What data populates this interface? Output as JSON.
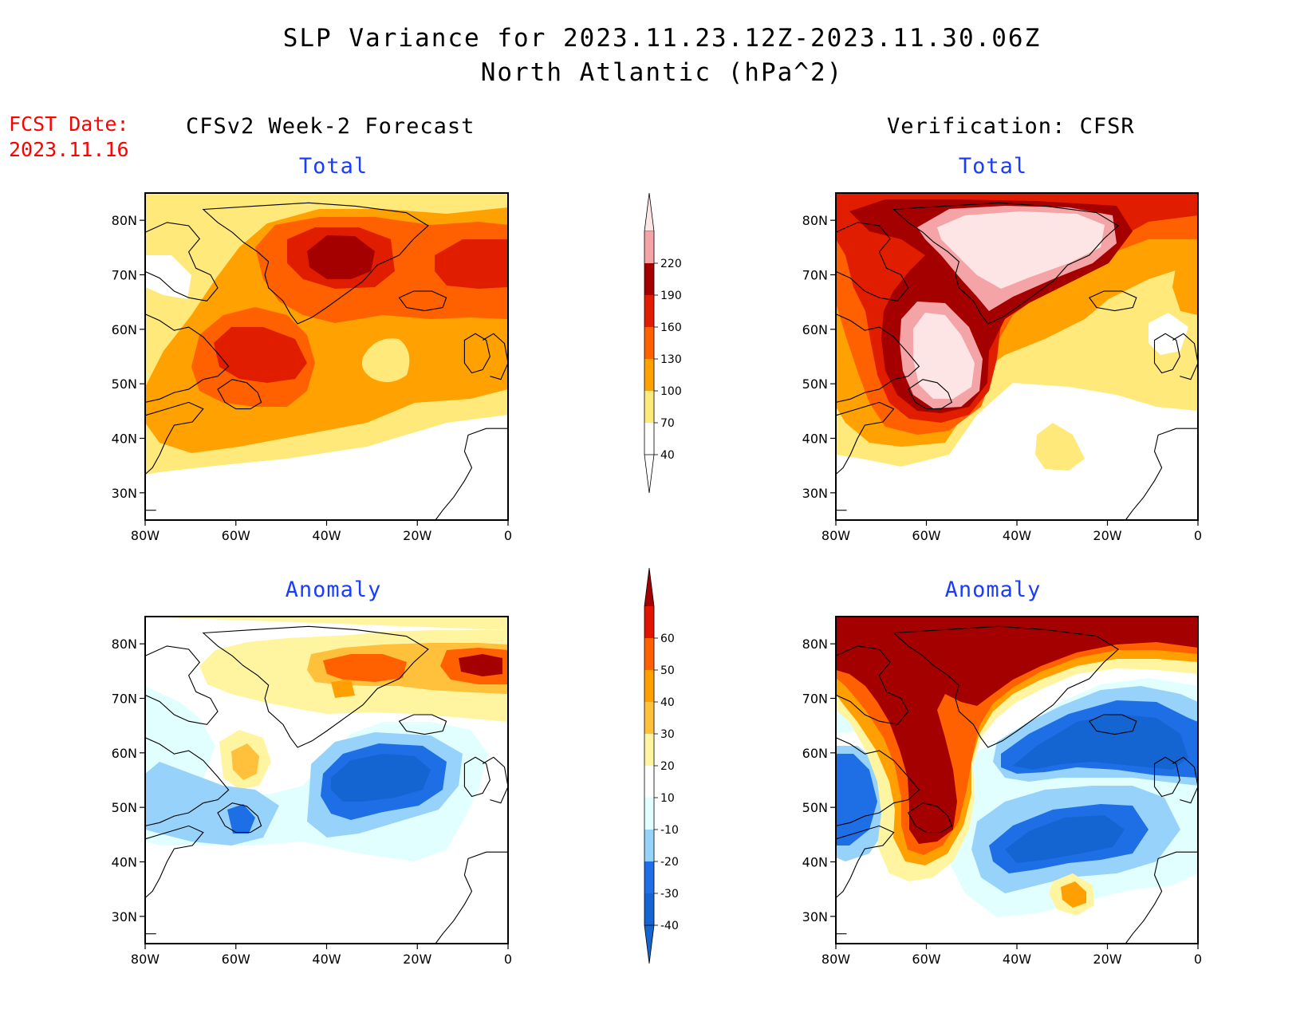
{
  "header": {
    "title_line1": "SLP Variance for 2023.11.23.12Z-2023.11.30.06Z",
    "title_line2": "North Atlantic (hPa^2)",
    "fcst_label": "FCST Date:",
    "fcst_date": "2023.11.16"
  },
  "columns": {
    "left": "CFSv2 Week-2 Forecast",
    "right": "Verification: CFSR"
  },
  "panels": {
    "fcst_total": "Total",
    "verif_total": "Total",
    "fcst_anom": "Anomaly",
    "verif_anom": "Anomaly"
  },
  "axes": {
    "lat_labels": [
      "80N",
      "70N",
      "60N",
      "50N",
      "40N",
      "30N"
    ],
    "lat_values": [
      80,
      70,
      60,
      50,
      40,
      30
    ],
    "lon_labels": [
      "80W",
      "60W",
      "40W",
      "20W",
      "0"
    ],
    "lon_values": [
      -80,
      -60,
      -40,
      -20,
      0
    ],
    "lon_range": [
      -80,
      0
    ],
    "lat_range": [
      25,
      85
    ]
  },
  "colorbar_total": {
    "levels": [
      "40",
      "70",
      "100",
      "130",
      "160",
      "190",
      "220"
    ],
    "colors": [
      "#ffffff",
      "#ffe97a",
      "#ffa100",
      "#ff6000",
      "#e11d00",
      "#a50000",
      "#f4a4a6",
      "#fde5e5"
    ]
  },
  "colorbar_anomaly": {
    "levels": [
      "-40",
      "-30",
      "-20",
      "-10",
      "10",
      "20",
      "30",
      "40",
      "50",
      "60"
    ],
    "colors": [
      "#1464d2",
      "#1e6fe6",
      "#96d2fa",
      "#e1ffff",
      "#ffffff",
      "#fff5a0",
      "#ffc03c",
      "#ffa000",
      "#ff6000",
      "#e11400",
      "#a50000"
    ]
  }
}
